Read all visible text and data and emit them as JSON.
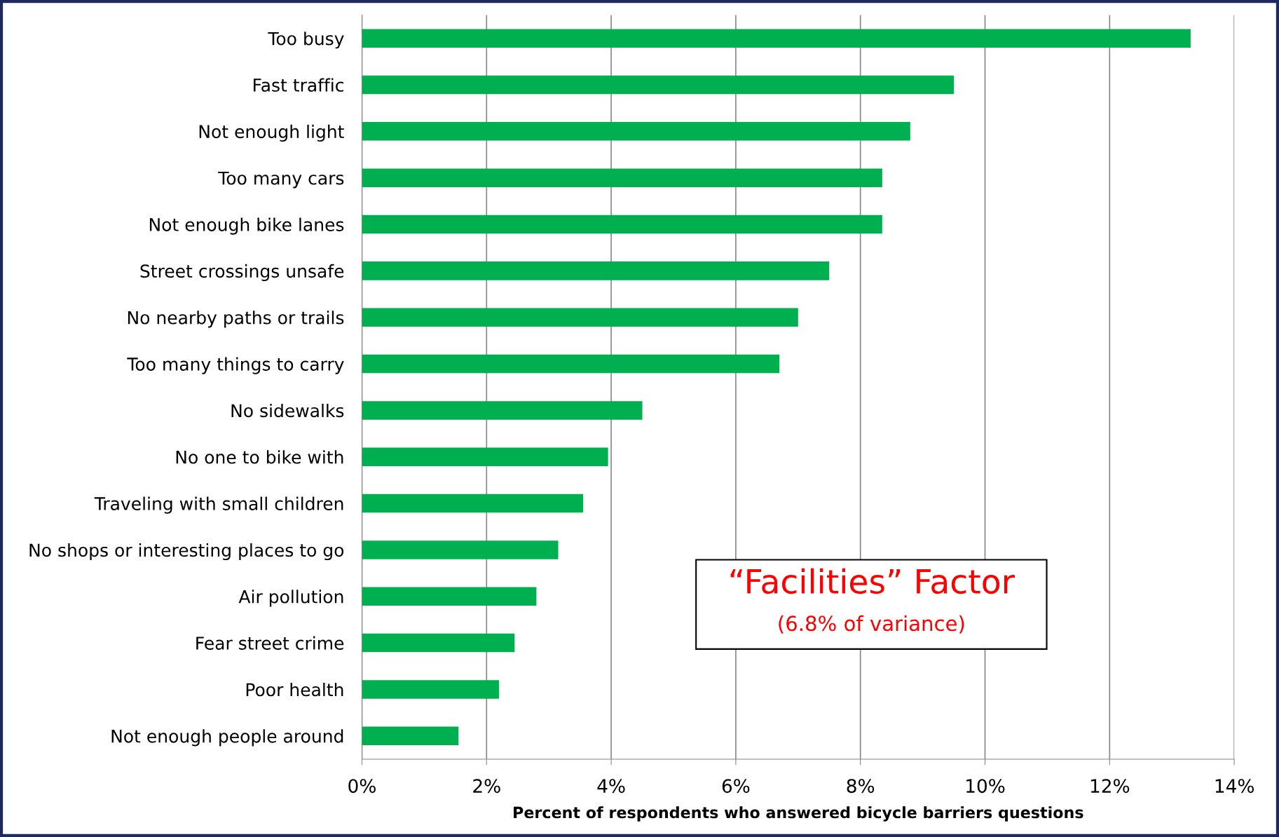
{
  "chart_data": {
    "type": "bar",
    "orientation": "horizontal",
    "categories": [
      "Too busy",
      "Fast traffic",
      "Not enough light",
      "Too many cars",
      "Not enough bike lanes",
      "Street crossings unsafe",
      "No nearby paths or trails",
      "Too many things to carry",
      "No sidewalks",
      "No one to bike with",
      "Traveling with small children",
      "No shops or interesting places to go",
      "Air pollution",
      "Fear street crime",
      "Poor health",
      "Not enough people around"
    ],
    "values": [
      13.3,
      9.5,
      8.8,
      8.35,
      8.35,
      7.5,
      7.0,
      6.7,
      4.5,
      3.95,
      3.55,
      3.15,
      2.8,
      2.45,
      2.2,
      1.55
    ],
    "color": "#00b050",
    "xlim": [
      0,
      14
    ],
    "xticks": [
      {
        "value": 0,
        "label": "0%"
      },
      {
        "value": 2,
        "label": "2%"
      },
      {
        "value": 4,
        "label": "4%"
      },
      {
        "value": 6,
        "label": "6%"
      },
      {
        "value": 8,
        "label": "8%"
      },
      {
        "value": 10,
        "label": "10%"
      },
      {
        "value": 12,
        "label": "12%"
      },
      {
        "value": 14,
        "label": "14%"
      }
    ],
    "xlabel": "Percent of respondents who answered bicycle barriers questions",
    "grid": "x",
    "legend": false,
    "annotations": [
      "“Facilities” Factor",
      "(6.8% of variance)"
    ]
  }
}
